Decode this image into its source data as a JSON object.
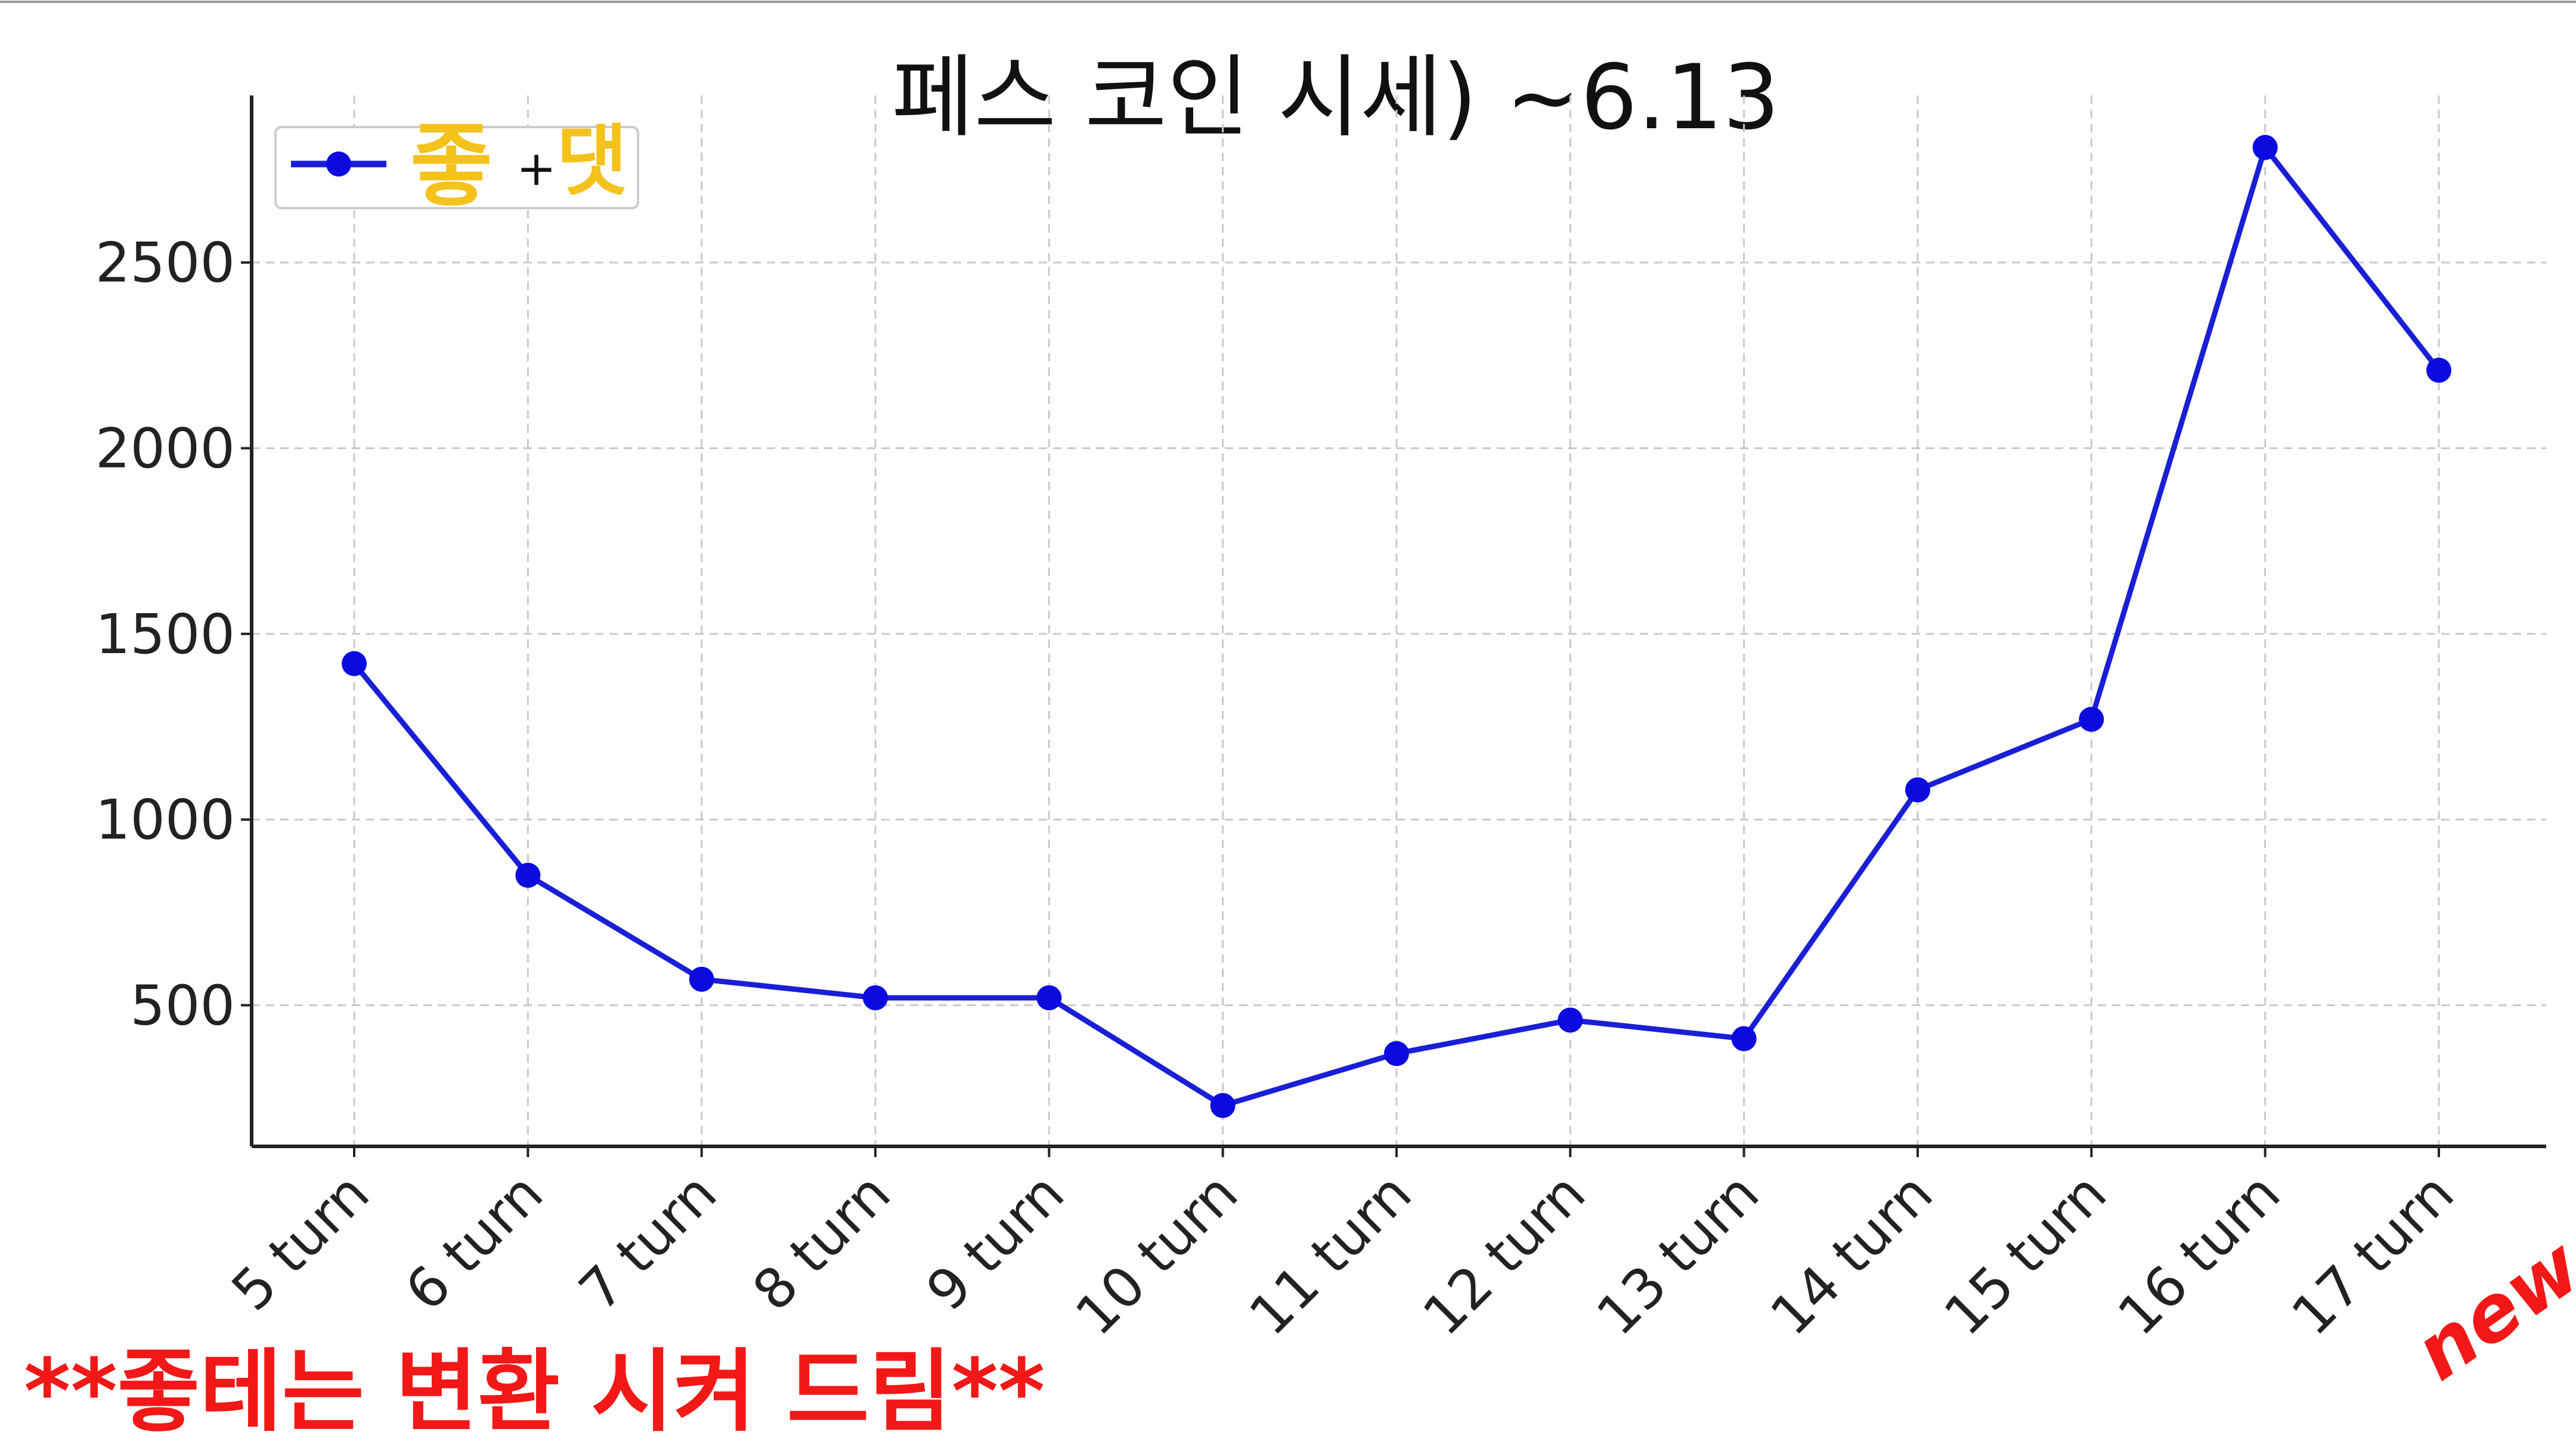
{
  "chart_data": {
    "type": "line",
    "title": "페스 코인 시세) ~6.13",
    "categories": [
      "5 turn",
      "6 turn",
      "7 turn",
      "8 turn",
      "9 turn",
      "10 turn",
      "11 turn",
      "12 turn",
      "13 turn",
      "14 turn",
      "15 turn",
      "16 turn",
      "17 turn"
    ],
    "series": [
      {
        "name_parts": [
          "좋",
          "+",
          "댓"
        ],
        "values": [
          1420,
          850,
          570,
          520,
          520,
          230,
          370,
          460,
          410,
          1080,
          1270,
          2810,
          2210
        ]
      }
    ],
    "yticks": [
      500,
      1000,
      1500,
      2000,
      2500
    ],
    "ylim": [
      120,
      2950
    ],
    "grid": true,
    "legend_position": "top-left",
    "annotations": {
      "footer": "**좋테는 변환 시켜 드림**",
      "new_tag": "new"
    },
    "colors": {
      "line": "#1a1fd6",
      "marker": "#0b0be0",
      "legend_yellow": "#f5c21b",
      "annotation_red": "#f21818"
    }
  }
}
